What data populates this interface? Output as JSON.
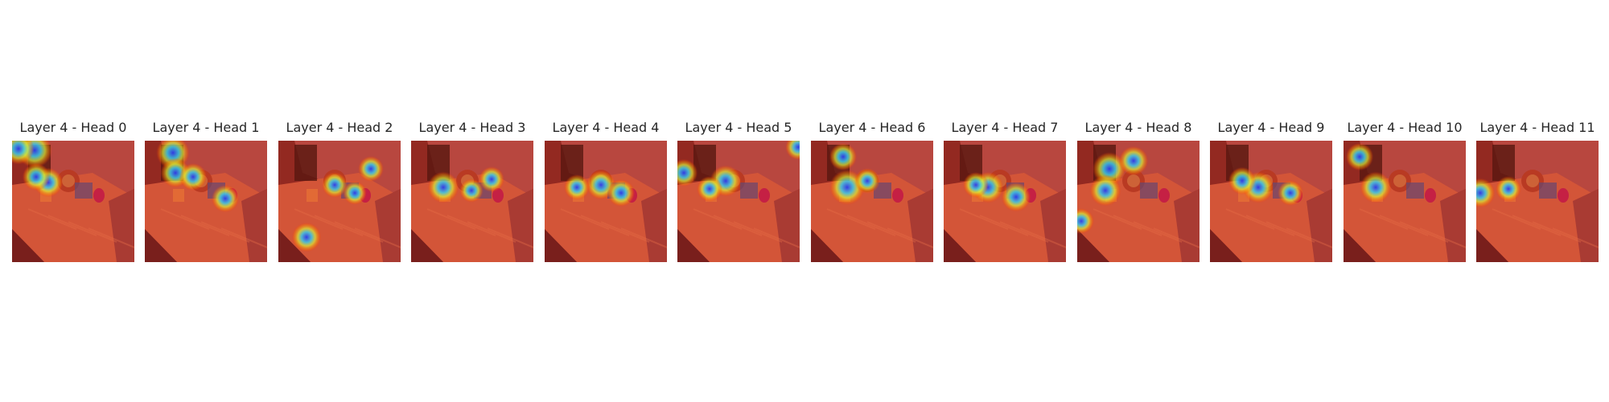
{
  "figure": {
    "panels": [
      {
        "title": "Layer 4 - Head 0",
        "hot": [
          [
            28,
            12,
            1
          ],
          [
            8,
            10,
            0.8
          ],
          [
            45,
            52,
            0.7
          ],
          [
            30,
            45,
            0.6
          ]
        ]
      },
      {
        "title": "Layer 4 - Head 1",
        "hot": [
          [
            35,
            15,
            0.9
          ],
          [
            38,
            40,
            0.7
          ],
          [
            60,
            45,
            0.6
          ],
          [
            100,
            72,
            0.6
          ]
        ]
      },
      {
        "title": "Layer 4 - Head 2",
        "hot": [
          [
            35,
            120,
            0.7
          ],
          [
            70,
            55,
            0.5
          ],
          [
            115,
            35,
            0.5
          ],
          [
            95,
            65,
            0.4
          ]
        ]
      },
      {
        "title": "Layer 4 - Head 3",
        "hot": [
          [
            40,
            58,
            0.8
          ],
          [
            100,
            48,
            0.5
          ],
          [
            75,
            62,
            0.4
          ]
        ]
      },
      {
        "title": "Layer 4 - Head 4",
        "hot": [
          [
            70,
            55,
            0.7
          ],
          [
            95,
            65,
            0.6
          ],
          [
            40,
            58,
            0.5
          ]
        ]
      },
      {
        "title": "Layer 4 - Head 5",
        "hot": [
          [
            60,
            50,
            0.8
          ],
          [
            8,
            40,
            0.6
          ],
          [
            40,
            60,
            0.5
          ],
          [
            150,
            8,
            0.5
          ]
        ]
      },
      {
        "title": "Layer 4 - Head 6",
        "hot": [
          [
            45,
            58,
            1
          ],
          [
            40,
            20,
            0.6
          ],
          [
            70,
            50,
            0.5
          ]
        ]
      },
      {
        "title": "Layer 4 - Head 7",
        "hot": [
          [
            55,
            58,
            0.8
          ],
          [
            90,
            70,
            0.7
          ],
          [
            40,
            55,
            0.5
          ]
        ]
      },
      {
        "title": "Layer 4 - Head 8",
        "hot": [
          [
            40,
            35,
            0.9
          ],
          [
            70,
            25,
            0.7
          ],
          [
            35,
            62,
            0.8
          ],
          [
            5,
            100,
            0.5
          ]
        ]
      },
      {
        "title": "Layer 4 - Head 9",
        "hot": [
          [
            60,
            58,
            0.8
          ],
          [
            40,
            50,
            0.6
          ],
          [
            100,
            65,
            0.5
          ]
        ]
      },
      {
        "title": "Layer 4 - Head 10",
        "hot": [
          [
            40,
            58,
            0.8
          ],
          [
            20,
            20,
            0.6
          ]
        ]
      },
      {
        "title": "Layer 4 - Head 11",
        "hot": [
          [
            5,
            65,
            0.7
          ],
          [
            40,
            60,
            0.5
          ]
        ]
      }
    ]
  }
}
